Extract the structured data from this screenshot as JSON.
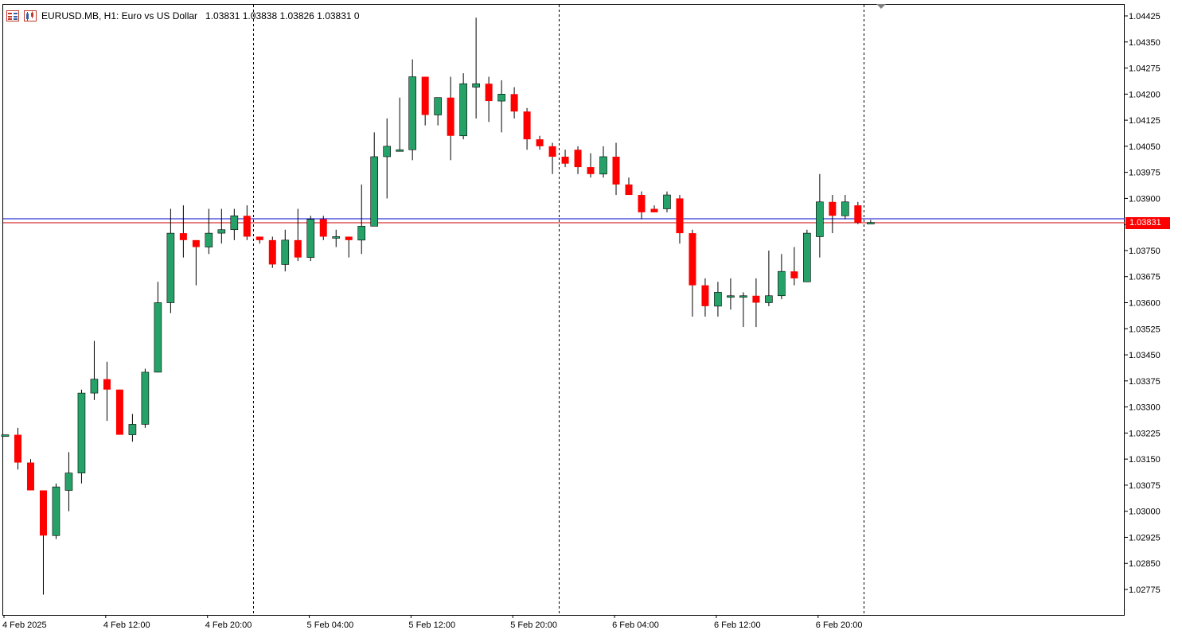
{
  "header": {
    "symbol_line": "EURUSD.MB, H1:  Euro vs US Dollar",
    "values_line": "1.03831 1.03838 1.03826 1.03831  0",
    "icons": [
      "market-watch-icon",
      "chart-properties-icon"
    ]
  },
  "price_badge": "1.03831",
  "colors": {
    "bull": "#26a269",
    "bear": "#ff0000",
    "bid_line": "#0000cc",
    "ask_line": "#cc0000",
    "separator": "#000000"
  },
  "chart_data": {
    "type": "candlestick",
    "y_ticks": [
      "1.04425",
      "1.04350",
      "1.04275",
      "1.04200",
      "1.04125",
      "1.04050",
      "1.03975",
      "1.03900",
      "1.03825",
      "1.03750",
      "1.03675",
      "1.03600",
      "1.03525",
      "1.03450",
      "1.03375",
      "1.03300",
      "1.03225",
      "1.03150",
      "1.03075",
      "1.03000",
      "1.02925",
      "1.02850",
      "1.02775"
    ],
    "x_ticks": [
      "4 Feb 2025",
      "4 Feb 12:00",
      "4 Feb 20:00",
      "5 Feb 04:00",
      "5 Feb 12:00",
      "5 Feb 20:00",
      "6 Feb 04:00",
      "6 Feb 12:00",
      "6 Feb 20:00"
    ],
    "ylim": [
      1.0268,
      1.0447
    ],
    "current_bid": 1.03831,
    "current_ask": 1.03838,
    "candles": [
      [
        1.0322,
        1.0322,
        1.0322,
        1.0322
      ],
      [
        1.0322,
        1.0324,
        1.0312,
        1.0314
      ],
      [
        1.0314,
        1.0315,
        1.0306,
        1.0306
      ],
      [
        1.0306,
        1.0306,
        1.0276,
        1.0293
      ],
      [
        1.0293,
        1.0308,
        1.0292,
        1.0307
      ],
      [
        1.0306,
        1.0317,
        1.03,
        1.0311
      ],
      [
        1.0311,
        1.0335,
        1.0308,
        1.0334
      ],
      [
        1.0334,
        1.0349,
        1.0332,
        1.0338
      ],
      [
        1.0338,
        1.0343,
        1.0326,
        1.0335
      ],
      [
        1.0335,
        1.0335,
        1.0322,
        1.0322
      ],
      [
        1.0322,
        1.0328,
        1.032,
        1.0325
      ],
      [
        1.0325,
        1.0341,
        1.0324,
        1.034
      ],
      [
        1.034,
        1.0366,
        1.034,
        1.036
      ],
      [
        1.036,
        1.0387,
        1.0357,
        1.038
      ],
      [
        1.038,
        1.0388,
        1.0373,
        1.0378
      ],
      [
        1.0378,
        1.0378,
        1.0365,
        1.0376
      ],
      [
        1.0376,
        1.0387,
        1.0374,
        1.038
      ],
      [
        1.038,
        1.0387,
        1.0377,
        1.0381
      ],
      [
        1.0381,
        1.0387,
        1.0378,
        1.0385
      ],
      [
        1.0385,
        1.0388,
        1.0378,
        1.0379
      ],
      [
        1.0379,
        1.0379,
        1.0377,
        1.0378
      ],
      [
        1.0378,
        1.0379,
        1.037,
        1.0371
      ],
      [
        1.0371,
        1.0381,
        1.0369,
        1.0378
      ],
      [
        1.0378,
        1.0387,
        1.0372,
        1.0373
      ],
      [
        1.0373,
        1.0385,
        1.0372,
        1.0384
      ],
      [
        1.0384,
        1.0385,
        1.0378,
        1.0379
      ],
      [
        1.0379,
        1.0381,
        1.0376,
        1.0379
      ],
      [
        1.0379,
        1.0379,
        1.0373,
        1.0378
      ],
      [
        1.0378,
        1.0394,
        1.0374,
        1.0382
      ],
      [
        1.0382,
        1.0409,
        1.0382,
        1.0402
      ],
      [
        1.0402,
        1.0413,
        1.039,
        1.0405
      ],
      [
        1.0404,
        1.0419,
        1.0404,
        1.0404
      ],
      [
        1.0404,
        1.043,
        1.0401,
        1.0425
      ],
      [
        1.0425,
        1.0425,
        1.0411,
        1.0414
      ],
      [
        1.0414,
        1.0419,
        1.0411,
        1.0419
      ],
      [
        1.0419,
        1.0425,
        1.0401,
        1.0408
      ],
      [
        1.0408,
        1.0426,
        1.0407,
        1.0423
      ],
      [
        1.0422,
        1.0442,
        1.0413,
        1.0423
      ],
      [
        1.0423,
        1.0425,
        1.0412,
        1.0418
      ],
      [
        1.0418,
        1.0424,
        1.0409,
        1.042
      ],
      [
        1.042,
        1.0422,
        1.0413,
        1.0415
      ],
      [
        1.0415,
        1.0416,
        1.0404,
        1.0407
      ],
      [
        1.0407,
        1.0408,
        1.0404,
        1.0405
      ],
      [
        1.0405,
        1.0406,
        1.0397,
        1.0402
      ],
      [
        1.0402,
        1.0404,
        1.0399,
        1.04
      ],
      [
        1.0404,
        1.0405,
        1.0397,
        1.0399
      ],
      [
        1.0399,
        1.0403,
        1.0396,
        1.0397
      ],
      [
        1.0397,
        1.0405,
        1.0396,
        1.0402
      ],
      [
        1.0402,
        1.0406,
        1.0391,
        1.0394
      ],
      [
        1.0394,
        1.0396,
        1.0391,
        1.0391
      ],
      [
        1.0391,
        1.0392,
        1.0384,
        1.0386
      ],
      [
        1.0387,
        1.0388,
        1.0386,
        1.0386
      ],
      [
        1.0387,
        1.0392,
        1.0386,
        1.0391
      ],
      [
        1.039,
        1.0391,
        1.0377,
        1.038
      ],
      [
        1.038,
        1.0381,
        1.0356,
        1.0365
      ],
      [
        1.0365,
        1.0367,
        1.0356,
        1.0359
      ],
      [
        1.0359,
        1.0366,
        1.0356,
        1.0363
      ],
      [
        1.0362,
        1.0367,
        1.0358,
        1.0362
      ],
      [
        1.0362,
        1.0363,
        1.0353,
        1.0362
      ],
      [
        1.0362,
        1.0367,
        1.0353,
        1.036
      ],
      [
        1.036,
        1.0375,
        1.0359,
        1.0362
      ],
      [
        1.0362,
        1.0374,
        1.0361,
        1.0369
      ],
      [
        1.0369,
        1.0376,
        1.0365,
        1.0367
      ],
      [
        1.0366,
        1.0381,
        1.0366,
        1.038
      ],
      [
        1.0379,
        1.0397,
        1.0373,
        1.0389
      ],
      [
        1.0389,
        1.0391,
        1.038,
        1.0385
      ],
      [
        1.0385,
        1.0391,
        1.0384,
        1.0389
      ],
      [
        1.0388,
        1.0389,
        1.03826,
        1.03831
      ],
      [
        1.03831,
        1.03838,
        1.03826,
        1.03831
      ]
    ],
    "grid": false,
    "period_separators_after_candle": [
      19,
      43,
      67
    ]
  }
}
